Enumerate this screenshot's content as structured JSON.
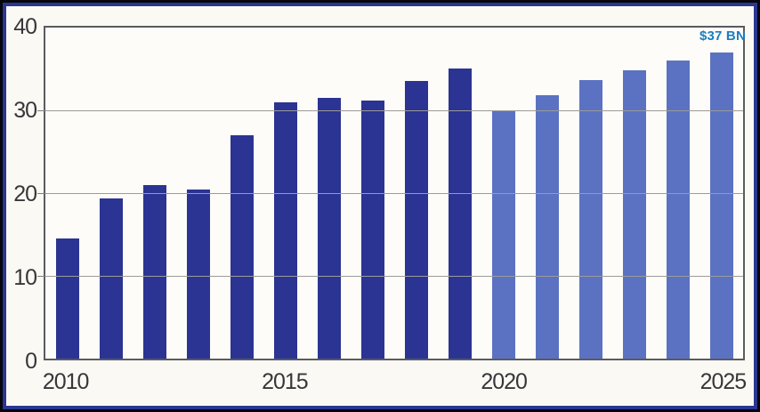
{
  "chart_data": {
    "type": "bar",
    "title": "",
    "x_axis": {
      "tick_labels": [
        "2010",
        "2015",
        "2020",
        "2025"
      ]
    },
    "y_axis": {
      "ticks": [
        0,
        10,
        20,
        30,
        40
      ],
      "range": [
        0,
        40
      ]
    },
    "grid": "horizontal gridlines at 10, 20, 30",
    "legend": false,
    "bars": [
      {
        "year": "2010",
        "value": 14.5,
        "segment": "dark_blue"
      },
      {
        "year": "2011",
        "value": 19.4,
        "segment": "dark_blue"
      },
      {
        "year": "2012",
        "value": 21.0,
        "segment": "dark_blue"
      },
      {
        "year": "2013",
        "value": 20.4,
        "segment": "dark_blue"
      },
      {
        "year": "2014",
        "value": 27.0,
        "segment": "dark_blue"
      },
      {
        "year": "2015",
        "value": 31.0,
        "segment": "dark_blue"
      },
      {
        "year": "2016",
        "value": 31.5,
        "segment": "dark_blue"
      },
      {
        "year": "2017",
        "value": 31.2,
        "segment": "dark_blue"
      },
      {
        "year": "2018",
        "value": 33.5,
        "segment": "dark_blue"
      },
      {
        "year": "2019",
        "value": 35.1,
        "segment": "dark_blue"
      },
      {
        "year": "2020",
        "value": 30.0,
        "segment": "light_blue"
      },
      {
        "year": "2021",
        "value": 31.8,
        "segment": "light_blue"
      },
      {
        "year": "2022",
        "value": 33.7,
        "segment": "light_blue"
      },
      {
        "year": "2023",
        "value": 34.8,
        "segment": "light_blue"
      },
      {
        "year": "2024",
        "value": 36.0,
        "segment": "light_blue"
      },
      {
        "year": "2025",
        "value": 37.0,
        "segment": "light_blue"
      }
    ],
    "segments": {
      "dark_blue": {
        "years": "2010-2019",
        "color": "#2b3492"
      },
      "light_blue": {
        "years": "2020-2025",
        "color": "#5b72c2"
      }
    },
    "annotation": {
      "text": "$37 BN",
      "bar": "2025",
      "color": "#1b7dc0"
    }
  },
  "colors": {
    "frame_border": "#2b3691",
    "outer_edge": "#06060d",
    "background": "#fbf9f4",
    "plot_border": "#5a5b5e",
    "gridline": "#9b9b9b",
    "axis_text": "#37373a"
  }
}
